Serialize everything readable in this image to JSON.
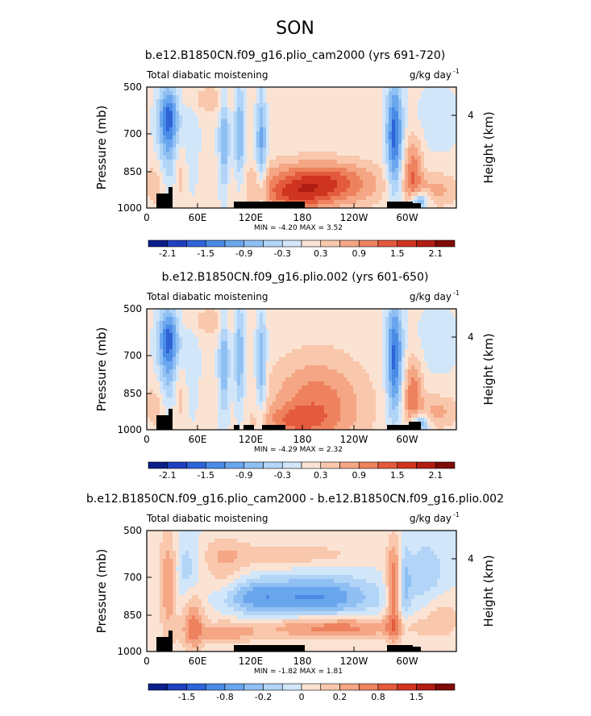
{
  "page_title": "SON",
  "colors": {
    "scale": [
      "#0a1d8a",
      "#1f3fbf",
      "#2f63d8",
      "#4a8be6",
      "#6aa6ee",
      "#8fbff3",
      "#b1d4f7",
      "#d2e6fa",
      "#fbe3d3",
      "#f9c7ac",
      "#f5a684",
      "#ee825f",
      "#e45a3c",
      "#cf3420",
      "#b01d12",
      "#7e0b06"
    ],
    "land": "#000000"
  },
  "chart_data": [
    {
      "type": "heatmap",
      "title": "b.e12.B1850CN.f09_g16.plio_cam2000 (yrs 691-720)",
      "left_label": "Total diabatic moistening",
      "right_label": "g/kg day",
      "right_label_sup": "-1",
      "ylabel": "Pressure (mb)",
      "y2label": "Height (km)",
      "y_ticks": [
        "500",
        "700",
        "850",
        "1000"
      ],
      "y2_ticks": [
        "4"
      ],
      "x_ticks": [
        "0",
        "60E",
        "120E",
        "180",
        "120W",
        "60W"
      ],
      "minmax": "MIN =   -4.20   MAX =    3.52",
      "colorbar_labels": [
        "-2.1",
        "-1.5",
        "-0.9",
        "-0.3",
        "0.3",
        "0.9",
        "1.5",
        "2.1"
      ],
      "min": -4.2,
      "max": 3.52,
      "grid": false
    },
    {
      "type": "heatmap",
      "title": "b.e12.B1850CN.f09_g16.plio.002 (yrs 601-650)",
      "left_label": "Total diabatic moistening",
      "right_label": "g/kg day",
      "right_label_sup": "-1",
      "ylabel": "Pressure (mb)",
      "y2label": "Height (km)",
      "y_ticks": [
        "500",
        "700",
        "850",
        "1000"
      ],
      "y2_ticks": [
        "4"
      ],
      "x_ticks": [
        "0",
        "60E",
        "120E",
        "180",
        "120W",
        "60W"
      ],
      "minmax": "MIN =   -4.29   MAX =    2.32",
      "colorbar_labels": [
        "-2.1",
        "-1.5",
        "-0.9",
        "-0.3",
        "0.3",
        "0.9",
        "1.5",
        "2.1"
      ],
      "min": -4.29,
      "max": 2.32,
      "grid": false
    },
    {
      "type": "heatmap",
      "title": "b.e12.B1850CN.f09_g16.plio_cam2000 - b.e12.B1850CN.f09_g16.plio.002",
      "left_label": "Total diabatic moistening",
      "right_label": "g/kg day",
      "right_label_sup": "-1",
      "ylabel": "Pressure (mb)",
      "y2label": "Height (km)",
      "y_ticks": [
        "500",
        "700",
        "850",
        "1000"
      ],
      "y2_ticks": [
        "4"
      ],
      "x_ticks": [
        "0",
        "60E",
        "120E",
        "180",
        "120W",
        "60W"
      ],
      "minmax": "MIN =   -1.82   MAX =    1.81",
      "colorbar_labels": [
        "-1.5",
        "-0.8",
        "-0.2",
        "0",
        "0.2",
        "0.8",
        "1.5"
      ],
      "min": -1.82,
      "max": 1.81,
      "grid": false
    }
  ]
}
